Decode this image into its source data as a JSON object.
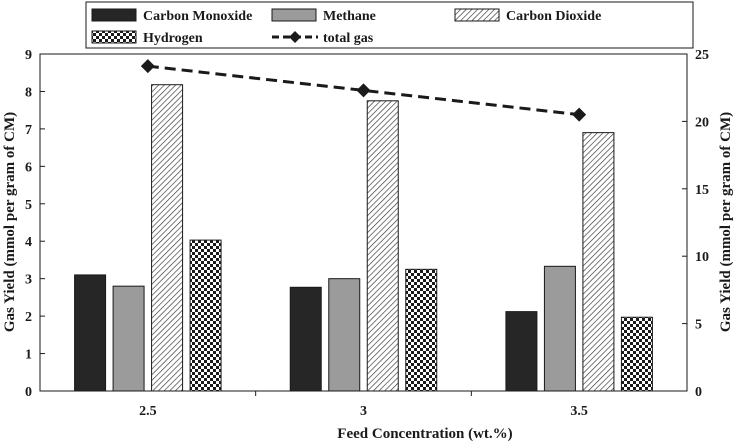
{
  "chart_data": {
    "type": "bar",
    "xlabel": "Feed Concentration (wt.%)",
    "ylabel_left": "Gas Yield (mmol per  gram of CM)",
    "ylabel_right": "Gas Yield (mmol per  gram of CM)",
    "categories": [
      "2.5",
      "3",
      "3.5"
    ],
    "y_left": {
      "min": 0,
      "max": 9,
      "ticks": [
        "0",
        "1",
        "2",
        "3",
        "4",
        "5",
        "6",
        "7",
        "8",
        "9"
      ]
    },
    "y_right": {
      "min": 0,
      "max": 25,
      "ticks": [
        "0",
        "5",
        "10",
        "15",
        "20",
        "25"
      ]
    },
    "grid": false,
    "legend_position": "top",
    "series": [
      {
        "name": "Carbon Monoxide",
        "axis": "left",
        "kind": "bar",
        "pattern": "solid-dark",
        "values": [
          3.1,
          2.77,
          2.12
        ]
      },
      {
        "name": "Methane",
        "axis": "left",
        "kind": "bar",
        "pattern": "solid-gray",
        "values": [
          2.8,
          3.0,
          3.33
        ]
      },
      {
        "name": "Carbon Dioxide",
        "axis": "left",
        "kind": "bar",
        "pattern": "diagonal-hatch",
        "values": [
          8.18,
          7.75,
          6.9
        ]
      },
      {
        "name": "Hydrogen",
        "axis": "left",
        "kind": "bar",
        "pattern": "checker",
        "values": [
          4.03,
          3.25,
          1.97
        ]
      },
      {
        "name": "total gas",
        "axis": "right",
        "kind": "line",
        "style": "dashed-diamond",
        "values": [
          24.1,
          22.3,
          20.5
        ]
      }
    ],
    "colors": {
      "dark": "#262626",
      "gray": "#9b9b9b",
      "line": "#1a1a1a"
    }
  }
}
